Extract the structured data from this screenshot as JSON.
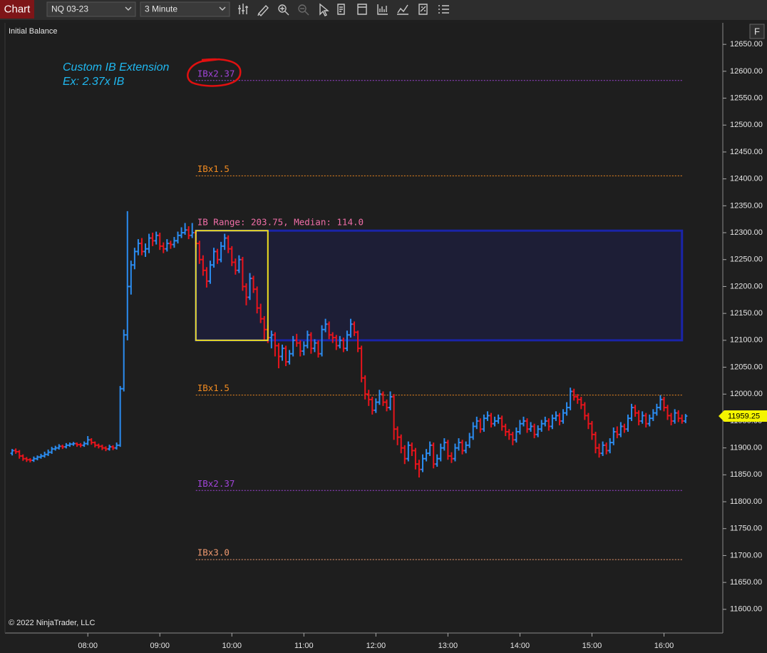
{
  "toolbar": {
    "button": "Chart",
    "instrument": "NQ 03-23",
    "interval": "3 Minute"
  },
  "panel": {
    "indicator": "Initial Balance",
    "copyright": "© 2022 NinjaTrader, LLC",
    "f_button": "F"
  },
  "chart_data": {
    "type": "ohlc",
    "annotations": [
      "Custom IB Extension",
      "Ex: 2.37x IB"
    ],
    "up_color": "#2b8cf0",
    "down_color": "#e8141c",
    "grid": false,
    "xlim": [
      411,
      1009
    ],
    "ylim": [
      11556,
      12690
    ],
    "xticks": [
      {
        "value": 480,
        "label": "08:00"
      },
      {
        "value": 540,
        "label": "09:00"
      },
      {
        "value": 600,
        "label": "10:00"
      },
      {
        "value": 660,
        "label": "11:00"
      },
      {
        "value": 720,
        "label": "12:00"
      },
      {
        "value": 780,
        "label": "13:00"
      },
      {
        "value": 840,
        "label": "14:00"
      },
      {
        "value": 900,
        "label": "15:00"
      },
      {
        "value": 960,
        "label": "16:00"
      }
    ],
    "yticks": [
      {
        "value": 11600,
        "label": "11600.00"
      },
      {
        "value": 11650,
        "label": "11650.00"
      },
      {
        "value": 11700,
        "label": "11700.00"
      },
      {
        "value": 11750,
        "label": "11750.00"
      },
      {
        "value": 11800,
        "label": "11800.00"
      },
      {
        "value": 11850,
        "label": "11850.00"
      },
      {
        "value": 11900,
        "label": "11900.00"
      },
      {
        "value": 11950,
        "label": "11950.00"
      },
      {
        "value": 12000,
        "label": "12000.00"
      },
      {
        "value": 12050,
        "label": "12050.00"
      },
      {
        "value": 12100,
        "label": "12100.00"
      },
      {
        "value": 12150,
        "label": "12150.00"
      },
      {
        "value": 12200,
        "label": "12200.00"
      },
      {
        "value": 12250,
        "label": "12250.00"
      },
      {
        "value": 12300,
        "label": "12300.00"
      },
      {
        "value": 12350,
        "label": "12350.00"
      },
      {
        "value": 12400,
        "label": "12400.00"
      },
      {
        "value": 12450,
        "label": "12450.00"
      },
      {
        "value": 12500,
        "label": "12500.00"
      },
      {
        "value": 12550,
        "label": "12550.00"
      },
      {
        "value": 12600,
        "label": "12600.00"
      },
      {
        "value": 12650,
        "label": "12650.00"
      }
    ],
    "ib": {
      "start": 570,
      "end": 630,
      "box_end": 975,
      "high": 12303.75,
      "low": 12100,
      "label": "IB Range: 203.75, Median: 114.0",
      "box_color": "#1a24a8",
      "ib_color": "#f0e020",
      "label_color": "#f06ea8"
    },
    "levels": [
      {
        "label": "IBx2.37",
        "value": 12582.89,
        "color": "#a044d8"
      },
      {
        "label": "IBx1.5",
        "value": 12405.63,
        "color": "#f08a20"
      },
      {
        "label": "IBx1.5",
        "value": 11998.13,
        "color": "#f08a20"
      },
      {
        "label": "IBx2.37",
        "value": 11820.86,
        "color": "#a044d8"
      },
      {
        "label": "IBx3.0",
        "value": 11692.5,
        "color": "#f09a70"
      }
    ],
    "last_price": 11959.25,
    "x": [
      417,
      420,
      423,
      426,
      429,
      432,
      435,
      438,
      441,
      444,
      447,
      450,
      453,
      456,
      459,
      462,
      465,
      468,
      471,
      474,
      477,
      480,
      483,
      486,
      489,
      492,
      495,
      498,
      501,
      504,
      507,
      510,
      513,
      516,
      519,
      522,
      525,
      528,
      531,
      534,
      537,
      540,
      543,
      546,
      549,
      552,
      555,
      558,
      561,
      564,
      567,
      570,
      573,
      576,
      579,
      582,
      585,
      588,
      591,
      594,
      597,
      600,
      603,
      606,
      609,
      612,
      615,
      618,
      621,
      624,
      627,
      630,
      633,
      636,
      639,
      642,
      645,
      648,
      651,
      654,
      657,
      660,
      663,
      666,
      669,
      672,
      675,
      678,
      681,
      684,
      687,
      690,
      693,
      696,
      699,
      702,
      705,
      708,
      711,
      714,
      717,
      720,
      723,
      726,
      729,
      732,
      735,
      738,
      741,
      744,
      747,
      750,
      753,
      756,
      759,
      762,
      765,
      768,
      771,
      774,
      777,
      780,
      783,
      786,
      789,
      792,
      795,
      798,
      801,
      804,
      807,
      810,
      813,
      816,
      819,
      822,
      825,
      828,
      831,
      834,
      837,
      840,
      843,
      846,
      849,
      852,
      855,
      858,
      861,
      864,
      867,
      870,
      873,
      876,
      879,
      882,
      885,
      888,
      891,
      894,
      897,
      900,
      903,
      906,
      909,
      912,
      915,
      918,
      921,
      924,
      927,
      930,
      933,
      936,
      939,
      942,
      945,
      948,
      951,
      954,
      957,
      960,
      963,
      966,
      969,
      972,
      975,
      978
    ],
    "open": [
      11890,
      11895,
      11893,
      11885,
      11880,
      11878,
      11877,
      11880,
      11883,
      11885,
      11888,
      11892,
      11898,
      11900,
      11903,
      11902,
      11905,
      11907,
      11908,
      11906,
      11905,
      11908,
      11915,
      11910,
      11905,
      11903,
      11900,
      11898,
      11902,
      11900,
      11905,
      12010,
      12110,
      12200,
      12240,
      12265,
      12280,
      12265,
      12270,
      12290,
      12285,
      12295,
      12275,
      12270,
      12280,
      12278,
      12285,
      12295,
      12300,
      12305,
      12295,
      12300,
      12280,
      12250,
      12230,
      12210,
      12240,
      12265,
      12250,
      12275,
      12290,
      12270,
      12245,
      12230,
      12250,
      12200,
      12180,
      12215,
      12195,
      12160,
      12140,
      12120,
      12105,
      12110,
      12090,
      12070,
      12085,
      12060,
      12075,
      12100,
      12095,
      12080,
      12090,
      12110,
      12085,
      12095,
      12075,
      12120,
      12130,
      12110,
      12105,
      12090,
      12100,
      12085,
      12110,
      12130,
      12115,
      12085,
      12030,
      12000,
      11990,
      11970,
      11985,
      12000,
      11985,
      11975,
      11995,
      11935,
      11920,
      11900,
      11880,
      11905,
      11895,
      11870,
      11860,
      11880,
      11890,
      11905,
      11870,
      11880,
      11900,
      11910,
      11885,
      11880,
      11900,
      11910,
      11895,
      11905,
      11920,
      11940,
      11950,
      11935,
      11955,
      11960,
      11945,
      11950,
      11955,
      11940,
      11930,
      11925,
      11915,
      11930,
      11945,
      11950,
      11935,
      11940,
      11925,
      11935,
      11945,
      11950,
      11940,
      11955,
      11960,
      11950,
      11965,
      11975,
      12005,
      11995,
      11990,
      11980,
      11960,
      11945,
      11925,
      11900,
      11890,
      11905,
      11895,
      11910,
      11930,
      11925,
      11940,
      11935,
      11955,
      11975,
      11965,
      11950,
      11960,
      11945,
      11955,
      11965,
      11975,
      11990,
      11975,
      11960,
      11950,
      11965,
      11955,
      11950
    ],
    "high": [
      11898,
      11899,
      11896,
      11888,
      11883,
      11881,
      11884,
      11886,
      11889,
      11893,
      11897,
      11902,
      11904,
      11907,
      11906,
      11909,
      11910,
      11911,
      11910,
      11909,
      11912,
      11922,
      11918,
      11912,
      11908,
      11906,
      11903,
      11906,
      11905,
      11910,
      12015,
      12120,
      12340,
      12248,
      12272,
      12288,
      12290,
      12280,
      12298,
      12300,
      12302,
      12300,
      12282,
      12288,
      12285,
      12292,
      12302,
      12310,
      12318,
      12312,
      12318,
      12303.75,
      12285,
      12258,
      12236,
      12248,
      12272,
      12270,
      12283,
      12298,
      12295,
      12275,
      12252,
      12258,
      12255,
      12206,
      12225,
      12220,
      12200,
      12168,
      12145,
      12128,
      12118,
      12115,
      12095,
      12092,
      12090,
      12082,
      12108,
      12112,
      12100,
      12098,
      12118,
      12115,
      12102,
      12100,
      12128,
      12140,
      12135,
      12115,
      12110,
      12108,
      12105,
      12118,
      12140,
      12135,
      12118,
      12090,
      12035,
      12008,
      11995,
      11992,
      12008,
      12005,
      11990,
      12005,
      12000,
      11940,
      11925,
      11905,
      11912,
      11910,
      11900,
      11878,
      11888,
      11898,
      11912,
      11910,
      11888,
      11908,
      11918,
      11915,
      11892,
      11908,
      11918,
      11915,
      11912,
      11928,
      11948,
      11958,
      11955,
      11962,
      11968,
      11965,
      11958,
      11962,
      11960,
      11945,
      11935,
      11930,
      11938,
      11952,
      11958,
      11955,
      11948,
      11945,
      11942,
      11952,
      11958,
      11955,
      11962,
      11968,
      11965,
      11972,
      11985,
      12012,
      12010,
      12000,
      11995,
      11985,
      11965,
      11950,
      11930,
      11908,
      11912,
      11910,
      11918,
      11938,
      11940,
      11948,
      11945,
      11962,
      11982,
      11980,
      11970,
      11968,
      11965,
      11962,
      11972,
      11982,
      11998,
      11995,
      11980,
      11965,
      11972,
      11970,
      11962,
      11963
    ],
    "low": [
      11886,
      11889,
      11880,
      11876,
      11874,
      11873,
      11874,
      11877,
      11880,
      11882,
      11885,
      11889,
      11895,
      11897,
      11898,
      11899,
      11902,
      11904,
      11902,
      11901,
      11902,
      11905,
      11906,
      11901,
      11899,
      11896,
      11894,
      11895,
      11896,
      11897,
      11902,
      12005,
      12100,
      12185,
      12232,
      12258,
      12258,
      12255,
      12262,
      12275,
      12278,
      12268,
      12262,
      12265,
      12270,
      12272,
      12280,
      12290,
      12296,
      12288,
      12290,
      12272,
      12242,
      12220,
      12198,
      12205,
      12235,
      12242,
      12245,
      12268,
      12262,
      12238,
      12222,
      12225,
      12192,
      12165,
      12175,
      12188,
      12150,
      12132,
      12100,
      12095,
      12085,
      12070,
      12048,
      12062,
      12052,
      12055,
      12070,
      12088,
      12070,
      12072,
      12085,
      12075,
      12078,
      12068,
      12070,
      12115,
      12102,
      12095,
      12082,
      12085,
      12078,
      12080,
      12105,
      12108,
      12078,
      12022,
      11990,
      11978,
      11962,
      11965,
      11980,
      11978,
      11968,
      11970,
      11915,
      11905,
      11890,
      11870,
      11875,
      11885,
      11860,
      11845,
      11855,
      11875,
      11885,
      11862,
      11865,
      11875,
      11895,
      11878,
      11872,
      11875,
      11895,
      11888,
      11890,
      11900,
      11915,
      11935,
      11928,
      11930,
      11950,
      11938,
      11940,
      11945,
      11932,
      11922,
      11915,
      11905,
      11910,
      11925,
      11940,
      11928,
      11930,
      11918,
      11920,
      11930,
      11940,
      11932,
      11935,
      11950,
      11942,
      11945,
      11960,
      11970,
      11988,
      11982,
      11972,
      11952,
      11935,
      11915,
      11890,
      11882,
      11885,
      11888,
      11890,
      11905,
      11918,
      11920,
      11928,
      11930,
      11950,
      11958,
      11942,
      11945,
      11938,
      11940,
      11950,
      11960,
      11970,
      11968,
      11952,
      11942,
      11945,
      11948,
      11945,
      11946
    ],
    "close": [
      11895,
      11893,
      11885,
      11880,
      11878,
      11877,
      11880,
      11883,
      11885,
      11888,
      11892,
      11898,
      11900,
      11903,
      11902,
      11905,
      11907,
      11908,
      11906,
      11905,
      11908,
      11915,
      11910,
      11905,
      11903,
      11900,
      11898,
      11902,
      11900,
      11905,
      12010,
      12110,
      12200,
      12240,
      12265,
      12280,
      12265,
      12270,
      12290,
      12285,
      12295,
      12275,
      12270,
      12280,
      12278,
      12285,
      12295,
      12300,
      12305,
      12295,
      12300,
      12280,
      12250,
      12230,
      12210,
      12240,
      12265,
      12250,
      12275,
      12290,
      12270,
      12245,
      12230,
      12250,
      12200,
      12180,
      12215,
      12195,
      12160,
      12140,
      12120,
      12105,
      12110,
      12090,
      12070,
      12085,
      12060,
      12075,
      12100,
      12095,
      12080,
      12090,
      12110,
      12085,
      12095,
      12075,
      12120,
      12130,
      12110,
      12105,
      12090,
      12100,
      12085,
      12110,
      12130,
      12115,
      12085,
      12030,
      12000,
      11990,
      11970,
      11985,
      12000,
      11985,
      11975,
      11995,
      11935,
      11920,
      11900,
      11880,
      11905,
      11895,
      11870,
      11860,
      11880,
      11890,
      11905,
      11870,
      11880,
      11900,
      11910,
      11885,
      11880,
      11900,
      11910,
      11895,
      11905,
      11920,
      11940,
      11950,
      11935,
      11955,
      11960,
      11945,
      11950,
      11955,
      11940,
      11930,
      11925,
      11915,
      11930,
      11945,
      11950,
      11935,
      11940,
      11925,
      11935,
      11945,
      11950,
      11940,
      11955,
      11960,
      11950,
      11965,
      11975,
      12005,
      11995,
      11990,
      11980,
      11960,
      11945,
      11925,
      11900,
      11890,
      11905,
      11895,
      11910,
      11930,
      11925,
      11940,
      11935,
      11955,
      11975,
      11965,
      11950,
      11960,
      11945,
      11955,
      11965,
      11975,
      11990,
      11975,
      11960,
      11950,
      11965,
      11955,
      11950,
      11959.25
    ]
  }
}
